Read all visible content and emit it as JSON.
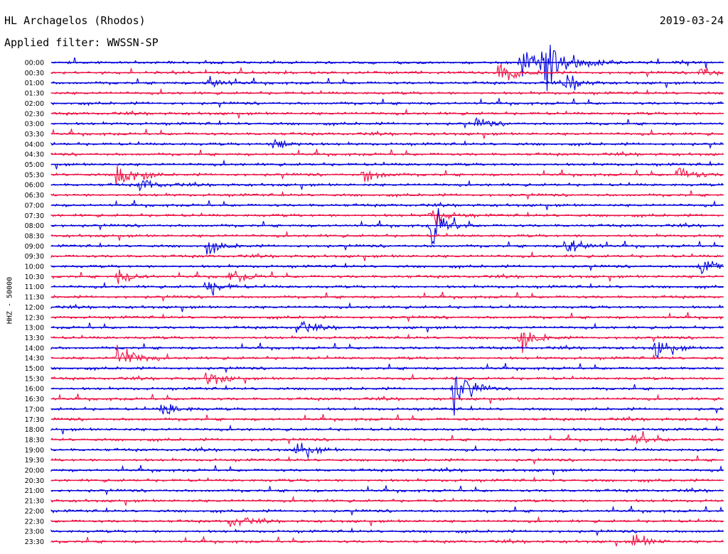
{
  "header": {
    "station": "HL Archagelos (Rhodos)",
    "filter": "Applied filter: WWSSN-SP",
    "date": "2019-03-24"
  },
  "chart_data": {
    "type": "line",
    "title": "HL Archagelos (Rhodos)",
    "subtitle": "Applied filter: WWSSN-SP",
    "date": "2019-03-24",
    "ylabel": "HHZ - 50000",
    "colors": [
      "#0000dd",
      "#ee1144"
    ],
    "trace_labels": [
      "00:00",
      "00:30",
      "01:00",
      "01:30",
      "02:00",
      "02:30",
      "03:00",
      "03:30",
      "04:00",
      "04:30",
      "05:00",
      "05:30",
      "06:00",
      "06:30",
      "07:00",
      "07:30",
      "08:00",
      "08:30",
      "09:00",
      "09:30",
      "10:00",
      "10:30",
      "11:00",
      "11:30",
      "12:00",
      "12:30",
      "13:00",
      "13:30",
      "14:00",
      "14:30",
      "15:00",
      "15:30",
      "16:00",
      "16:30",
      "17:00",
      "17:30",
      "18:00",
      "18:30",
      "19:00",
      "19:30",
      "20:00",
      "20:30",
      "21:00",
      "21:30",
      "22:00",
      "22:30",
      "23:00",
      "23:30"
    ],
    "events": [
      {
        "trace": "00:00",
        "minute": 24,
        "amp": 1.2
      },
      {
        "trace": "00:00",
        "minute": 21,
        "amp": 2.8
      },
      {
        "trace": "00:00",
        "minute": 22,
        "amp": 5.5
      },
      {
        "trace": "00:30",
        "minute": 20,
        "amp": 2.2
      },
      {
        "trace": "00:30",
        "minute": 29,
        "amp": 1.2
      },
      {
        "trace": "01:00",
        "minute": 7,
        "amp": 1.2
      },
      {
        "trace": "01:00",
        "minute": 23,
        "amp": 1.2
      },
      {
        "trace": "03:00",
        "minute": 19,
        "amp": 0.8
      },
      {
        "trace": "04:00",
        "minute": 10,
        "amp": 1.3
      },
      {
        "trace": "05:30",
        "minute": 3,
        "amp": 3.2
      },
      {
        "trace": "05:30",
        "minute": 14,
        "amp": 1.3
      },
      {
        "trace": "05:30",
        "minute": 28,
        "amp": 1.3
      },
      {
        "trace": "06:00",
        "minute": 4,
        "amp": 1.1
      },
      {
        "trace": "07:30",
        "minute": 17,
        "amp": 1.6
      },
      {
        "trace": "08:00",
        "minute": 17,
        "amp": 3.5
      },
      {
        "trace": "09:00",
        "minute": 23,
        "amp": 1.8
      },
      {
        "trace": "09:00",
        "minute": 7,
        "amp": 1.1
      },
      {
        "trace": "10:00",
        "minute": 29,
        "amp": 1.8
      },
      {
        "trace": "10:30",
        "minute": 3,
        "amp": 1.2
      },
      {
        "trace": "10:30",
        "minute": 8,
        "amp": 1.2
      },
      {
        "trace": "11:00",
        "minute": 7,
        "amp": 1.3
      },
      {
        "trace": "13:00",
        "minute": 11,
        "amp": 1.0
      },
      {
        "trace": "13:30",
        "minute": 21,
        "amp": 1.8
      },
      {
        "trace": "14:00",
        "minute": 27,
        "amp": 1.6
      },
      {
        "trace": "14:30",
        "minute": 3,
        "amp": 2.8
      },
      {
        "trace": "15:30",
        "minute": 7,
        "amp": 1.3
      },
      {
        "trace": "16:00",
        "minute": 18,
        "amp": 3.8
      },
      {
        "trace": "17:00",
        "minute": 5,
        "amp": 1.2
      },
      {
        "trace": "18:30",
        "minute": 26,
        "amp": 1.3
      },
      {
        "trace": "19:00",
        "minute": 11,
        "amp": 1.5
      },
      {
        "trace": "22:30",
        "minute": 8,
        "amp": 1.1
      },
      {
        "trace": "23:30",
        "minute": 26,
        "amp": 1.3
      }
    ]
  }
}
